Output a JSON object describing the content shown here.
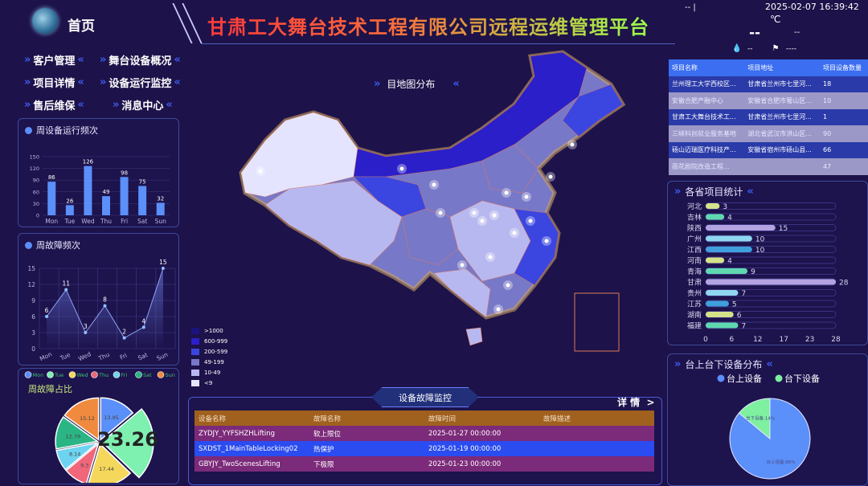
{
  "header": {
    "home": "首页",
    "title": "甘肃工大舞台技术工程有限公司远程运维管理平台"
  },
  "nav": [
    {
      "label": "客户管理"
    },
    {
      "label": "舞台设备概况"
    },
    {
      "label": "项目详情"
    },
    {
      "label": "设备运行监控"
    },
    {
      "label": "售后维保"
    },
    {
      "label": "消息中心"
    }
  ],
  "weather": {
    "left": "-- |",
    "datetime": "2025-02-07 16:39:42",
    "unit": "℃",
    "temp": "--",
    "desc": "--",
    "humidity": "--",
    "wind": "----"
  },
  "projects": {
    "headers": [
      "项目名称",
      "项目地址",
      "项目设备数量"
    ],
    "rows": [
      [
        "兰州理工大学西校区...",
        "甘肃省兰州市七里河...",
        "18"
      ],
      [
        "安徽合肥产融中心",
        "安徽省合肥市蜀山区...",
        "10"
      ],
      [
        "甘肃工大舞台技术工...",
        "甘肃省兰州市七里河...",
        "1"
      ],
      [
        "三峡科创就业服务基地",
        "湖北省武汉市洪山区...",
        "90"
      ],
      [
        "砀山迈瑞医疗科技产...",
        "安徽省宿州市砀山县...",
        "66"
      ],
      [
        "雨花剧院改造工程...",
        "",
        "47"
      ]
    ]
  },
  "weekly_run": {
    "title": "周设备运行频次",
    "chart_data": {
      "type": "bar",
      "categories": [
        "Mon",
        "Tue",
        "Wed",
        "Thu",
        "Fri",
        "Sat",
        "Sun"
      ],
      "values": [
        86,
        26,
        126,
        49,
        98,
        75,
        32
      ],
      "ylim": [
        0,
        150
      ],
      "yticks": [
        0,
        30,
        60,
        90,
        120,
        150
      ],
      "color": "#5b8ff9"
    }
  },
  "weekly_fault": {
    "title": "周故障频次",
    "chart_data": {
      "type": "line",
      "categories": [
        "Mon",
        "Tue",
        "Wed",
        "Thu",
        "Fri",
        "Sat",
        "Sun"
      ],
      "values": [
        6,
        11,
        3,
        8,
        2,
        4,
        15
      ],
      "ylim": [
        0,
        15
      ],
      "yticks": [
        0,
        3,
        6,
        9,
        12,
        15
      ],
      "grid": true
    }
  },
  "fault_ratio": {
    "title": "周故障占比",
    "center_label": "23.26",
    "chart_data": {
      "type": "pie",
      "categories": [
        "Mon",
        "Tue",
        "Wed",
        "Thu",
        "Fri",
        "Sat",
        "Sun"
      ],
      "values": [
        13.95,
        23.26,
        17.44,
        9.3,
        8.14,
        12.79,
        15.12
      ],
      "colors": [
        "#5b8ff9",
        "#7ef0b0",
        "#f5d85b",
        "#f0677a",
        "#6dd3f0",
        "#2bb585",
        "#f08a3e"
      ],
      "highlighted": "Tue"
    }
  },
  "map": {
    "title": "目地图分布",
    "legend": [
      {
        "label": ">1000",
        "color": "#1a1380"
      },
      {
        "label": "600-999",
        "color": "#2a1fc8"
      },
      {
        "label": "200-599",
        "color": "#3b46e0"
      },
      {
        "label": "49-199",
        "color": "#7878c8"
      },
      {
        "label": "10-49",
        "color": "#b8b8f0"
      },
      {
        "label": "<9",
        "color": "#e4e4ff"
      }
    ]
  },
  "fault_monitor": {
    "title": "设备故障监控",
    "detail": "详 情  >",
    "headers": [
      "设备名称",
      "故障名称",
      "故障时间",
      "故障描述"
    ],
    "rows": [
      [
        "ZYDJY_YYFSHZHLifting",
        "软上限位",
        "2025-01-27 00:00:00",
        ""
      ],
      [
        "SXDST_1MainTableLocking02",
        "热保护",
        "2025-01-19 00:00:00",
        ""
      ],
      [
        "GBYJY_TwoScenesLifting",
        "下极限",
        "2025-01-23 00:00:00",
        ""
      ]
    ]
  },
  "province": {
    "title": "各省项目统计",
    "chart_data": {
      "type": "bar",
      "orientation": "horizontal",
      "categories": [
        "河北",
        "吉林",
        "陕西",
        "广州",
        "江西",
        "河南",
        "青海",
        "甘肃",
        "贵州",
        "江苏",
        "湖南",
        "福建"
      ],
      "values": [
        3,
        4,
        15,
        10,
        10,
        4,
        9,
        28,
        7,
        5,
        6,
        7
      ],
      "xticks": [
        "0",
        "6",
        "12",
        "17",
        "23",
        "28"
      ],
      "xlim": [
        0,
        28
      ],
      "colors": [
        "#d4e38a",
        "#5fd8b0",
        "#b3a3e0",
        "#8fd6f0",
        "#3f9fdc"
      ]
    }
  },
  "stage": {
    "title": "台上台下设备分布",
    "chart_data": {
      "type": "pie",
      "categories": [
        "台上设备",
        "台下设备"
      ],
      "values": [
        86,
        14
      ],
      "labels": [
        "台上设备:86%",
        "台下设备:14%"
      ],
      "colors": [
        "#5b8ff9",
        "#7ef0a0"
      ]
    }
  }
}
